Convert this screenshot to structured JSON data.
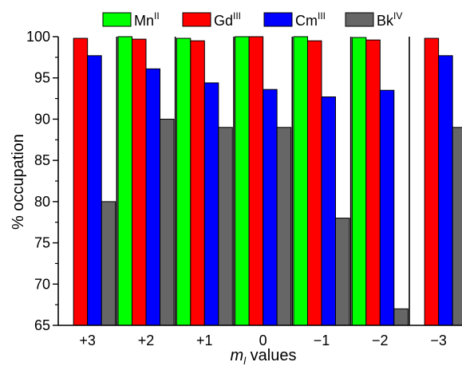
{
  "chart_data": {
    "type": "bar",
    "title": "",
    "xlabel": {
      "symbol": "m",
      "subscript": "l",
      "rest": " values"
    },
    "ylabel": "% occupation",
    "ylim": [
      65,
      100
    ],
    "yticks": [
      "65",
      "70",
      "75",
      "80",
      "85",
      "90",
      "95",
      "100"
    ],
    "categories": [
      "+3",
      "+2",
      "+1",
      "0",
      "−1",
      "−2",
      "−3"
    ],
    "series": [
      {
        "name": "Mn",
        "superscript": "II",
        "color": "#00ff00",
        "values": [
          null,
          100.0,
          99.8,
          100.0,
          100.0,
          99.9,
          null
        ]
      },
      {
        "name": "Gd",
        "superscript": "III",
        "color": "#ff0000",
        "values": [
          99.8,
          99.7,
          99.5,
          100.0,
          99.5,
          99.6,
          99.8
        ]
      },
      {
        "name": "Cm",
        "superscript": "III",
        "color": "#0000ff",
        "values": [
          97.7,
          96.1,
          94.4,
          93.6,
          92.7,
          93.5,
          97.7
        ]
      },
      {
        "name": "Bk",
        "superscript": "IV",
        "color": "#666666",
        "values": [
          80.0,
          90.0,
          89.0,
          89.0,
          78.0,
          67.0,
          89.0
        ]
      }
    ],
    "legend_position": "top",
    "grid": false,
    "group_separators": true
  }
}
